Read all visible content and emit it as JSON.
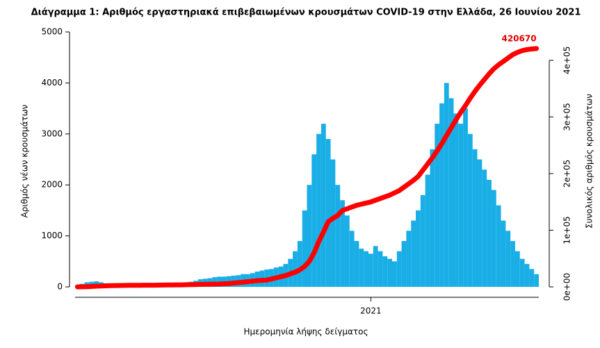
{
  "chart_data": {
    "type": "bar_line",
    "title": "Διάγραμμα 1: Αριθμός εργαστηριακά επιβεβαιωμένων κρουσμάτων COVID-19 στην Ελλάδα, 26 Ιουνίου 2021",
    "x_label": "Ημερομηνία λήψης δείγματος",
    "y_label": "Αριθμός νέων κρουσμάτων",
    "y2_label": "Συνολικός αριθμός κρουσμάτων",
    "categories": [
      null,
      null,
      null,
      null,
      null,
      null,
      null,
      null,
      null,
      null,
      null,
      null,
      null,
      null,
      null,
      null,
      null,
      null,
      null,
      null,
      null,
      null,
      null,
      null,
      null,
      null,
      null,
      null,
      null,
      null,
      null,
      null,
      null,
      null,
      null,
      null,
      null,
      null,
      null,
      null,
      null,
      null,
      null,
      null,
      null,
      null,
      null,
      null,
      null,
      null,
      null,
      null,
      null,
      null,
      null,
      null,
      null,
      null,
      null,
      null,
      null,
      null,
      "2021",
      null,
      null,
      null,
      null,
      null,
      null,
      null,
      null,
      null,
      null,
      null,
      null,
      null,
      null,
      null,
      null,
      null,
      null,
      null,
      null,
      null,
      null,
      null,
      null,
      null,
      null,
      null,
      null,
      null,
      null,
      null,
      null,
      null,
      null,
      null
    ],
    "series": [
      {
        "color": "#1aaee6",
        "values": [
          30,
          60,
          90,
          100,
          110,
          90,
          70,
          60,
          50,
          40,
          30,
          25,
          20,
          15,
          15,
          10,
          10,
          15,
          20,
          25,
          30,
          30,
          40,
          50,
          100,
          120,
          150,
          160,
          170,
          190,
          200,
          200,
          210,
          220,
          230,
          250,
          250,
          270,
          300,
          320,
          340,
          350,
          380,
          400,
          450,
          550,
          700,
          900,
          1500,
          2000,
          2600,
          3000,
          3200,
          2900,
          2500,
          2000,
          1700,
          1400,
          1100,
          900,
          750,
          700,
          650,
          800,
          700,
          600,
          550,
          500,
          700,
          900,
          1100,
          1300,
          1500,
          1800,
          2200,
          2700,
          3200,
          3600,
          4000,
          3700,
          3400,
          3200,
          3500,
          3000,
          2700,
          2500,
          2300,
          2100,
          1900,
          1600,
          1300,
          1100,
          900,
          700,
          550,
          450,
          350,
          250
        ]
      },
      {
        "color": "#ff0000",
        "axis": "y2",
        "values": [
          0,
          100,
          300,
          700,
          1200,
          1600,
          1900,
          2100,
          2300,
          2500,
          2600,
          2700,
          2750,
          2800,
          2900,
          2950,
          3000,
          3100,
          3200,
          3300,
          3400,
          3500,
          3600,
          3800,
          4000,
          4200,
          4400,
          4600,
          4800,
          4900,
          5000,
          5500,
          6000,
          6700,
          7500,
          8300,
          9200,
          10000,
          11000,
          11500,
          12000,
          14000,
          16000,
          18000,
          20000,
          23000,
          26000,
          30000,
          36000,
          45000,
          60000,
          80000,
          97000,
          115000,
          121000,
          126000,
          135000,
          138000,
          141000,
          144000,
          146000,
          148000,
          150000,
          153000,
          156000,
          159000,
          162000,
          166000,
          170000,
          176000,
          182000,
          188000,
          195000,
          206000,
          217000,
          228000,
          240000,
          253000,
          267000,
          281000,
          295000,
          308000,
          320000,
          333000,
          345000,
          356000,
          366000,
          376000,
          385000,
          392000,
          398000,
          404000,
          410000,
          414000,
          417000,
          419000,
          420000,
          420670
        ]
      }
    ],
    "annotation": "420670",
    "ylim": [
      0,
      5000
    ],
    "yticks": [
      0,
      1000,
      2000,
      3000,
      4000,
      5000
    ],
    "y2lim": [
      0,
      450000
    ],
    "y2ticks": [
      {
        "value": 0,
        "label": "0e+00"
      },
      {
        "value": 100000,
        "label": "1e+05"
      },
      {
        "value": 200000,
        "label": "2e+05"
      },
      {
        "value": 300000,
        "label": "3e+05"
      },
      {
        "value": 400000,
        "label": "4e+05"
      }
    ]
  }
}
